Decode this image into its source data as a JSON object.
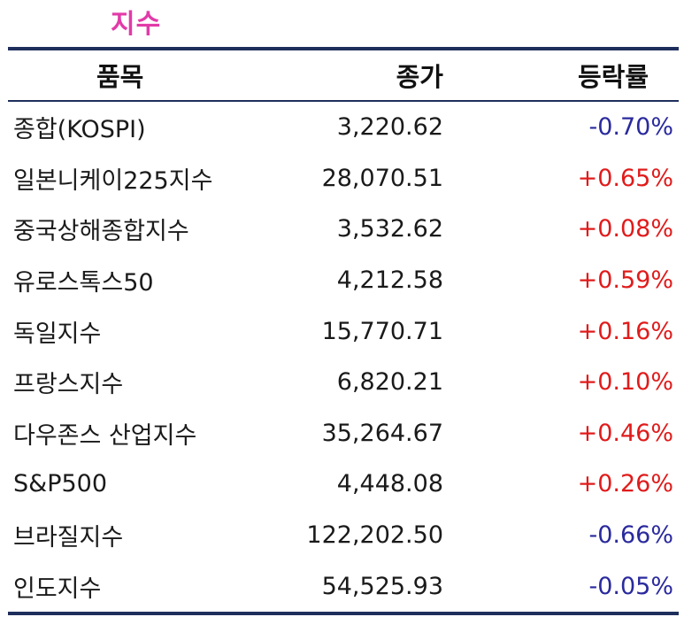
{
  "title": "지수",
  "colors": {
    "title": "#e23aa8",
    "rule": "#1f2f5c",
    "up": "#e01b1b",
    "down": "#2a2a9e"
  },
  "table": {
    "headers": {
      "name": "품목",
      "close": "종가",
      "change": "등락률"
    },
    "rows": [
      {
        "name": "종합(KOSPI)",
        "close": "3,220.62",
        "change": "-0.70%",
        "direction": "down"
      },
      {
        "name": "일본니케이225지수",
        "close": "28,070.51",
        "change": "+0.65%",
        "direction": "up"
      },
      {
        "name": "중국상해종합지수",
        "close": "3,532.62",
        "change": "+0.08%",
        "direction": "up"
      },
      {
        "name": "유로스톡스50",
        "close": "4,212.58",
        "change": "+0.59%",
        "direction": "up"
      },
      {
        "name": "독일지수",
        "close": "15,770.71",
        "change": "+0.16%",
        "direction": "up"
      },
      {
        "name": "프랑스지수",
        "close": "6,820.21",
        "change": "+0.10%",
        "direction": "up"
      },
      {
        "name": "다우존스 산업지수",
        "close": "35,264.67",
        "change": "+0.46%",
        "direction": "up"
      },
      {
        "name": "S&P500",
        "close": "4,448.08",
        "change": "+0.26%",
        "direction": "up"
      },
      {
        "name": "브라질지수",
        "close": "122,202.50",
        "change": "-0.66%",
        "direction": "down"
      },
      {
        "name": "인도지수",
        "close": "54,525.93",
        "change": "-0.05%",
        "direction": "down"
      }
    ]
  }
}
